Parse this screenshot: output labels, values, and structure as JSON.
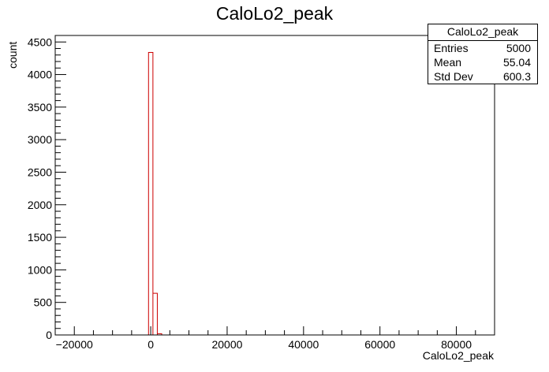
{
  "chart_data": {
    "type": "histogram",
    "title": "CaloLo2_peak",
    "xlabel": "CaloLo2_peak",
    "ylabel": "count",
    "xlim": [
      -25000,
      90000
    ],
    "ylim": [
      0,
      4600
    ],
    "x_ticks": [
      -20000,
      0,
      20000,
      40000,
      60000,
      80000
    ],
    "x_tick_labels": [
      "−20000",
      "0",
      "20000",
      "40000",
      "60000",
      "80000"
    ],
    "y_ticks": [
      0,
      500,
      1000,
      1500,
      2000,
      2500,
      3000,
      3500,
      4000,
      4500
    ],
    "y_tick_labels": [
      "0",
      "500",
      "1000",
      "1500",
      "2000",
      "2500",
      "3000",
      "3500",
      "4000",
      "4500"
    ],
    "bin_width": 1150,
    "bins": [
      {
        "x_low": -575,
        "x_high": 575,
        "count": 4340
      },
      {
        "x_low": 575,
        "x_high": 1725,
        "count": 640
      },
      {
        "x_low": 1725,
        "x_high": 2875,
        "count": 20
      }
    ],
    "line_color": "#cc0000",
    "grid": false,
    "stats_box": {
      "title": "CaloLo2_peak",
      "entries_label": "Entries",
      "entries": "5000",
      "mean_label": "Mean",
      "mean": "55.04",
      "stddev_label": "Std Dev",
      "stddev": "600.3"
    }
  }
}
